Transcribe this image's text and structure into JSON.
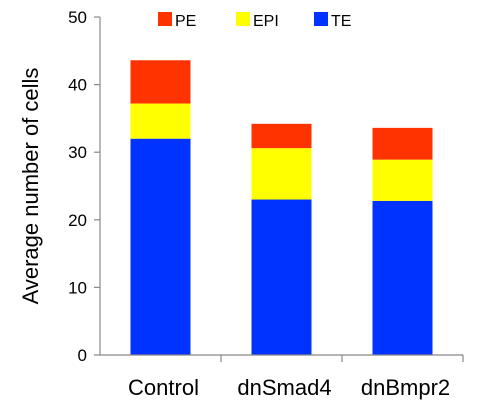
{
  "chart_data": {
    "type": "bar",
    "stacked": true,
    "categories": [
      "Control",
      "dnSmad4",
      "dnBmpr2"
    ],
    "series": [
      {
        "name": "TE",
        "values": [
          32,
          23,
          22.8
        ],
        "color": "#0033ff"
      },
      {
        "name": "EPI",
        "values": [
          5.2,
          7.6,
          6.1
        ],
        "color": "#ffff00"
      },
      {
        "name": "PE",
        "values": [
          6.4,
          3.6,
          4.7
        ],
        "color": "#ff3300"
      }
    ],
    "title": "",
    "xlabel": "",
    "ylabel": "Average number of cells",
    "ylim": [
      0,
      50
    ],
    "yticks": [
      0,
      10,
      20,
      30,
      40,
      50
    ],
    "grid": false,
    "legend": {
      "placement": "top",
      "order": [
        "PE",
        "EPI",
        "TE"
      ]
    }
  }
}
